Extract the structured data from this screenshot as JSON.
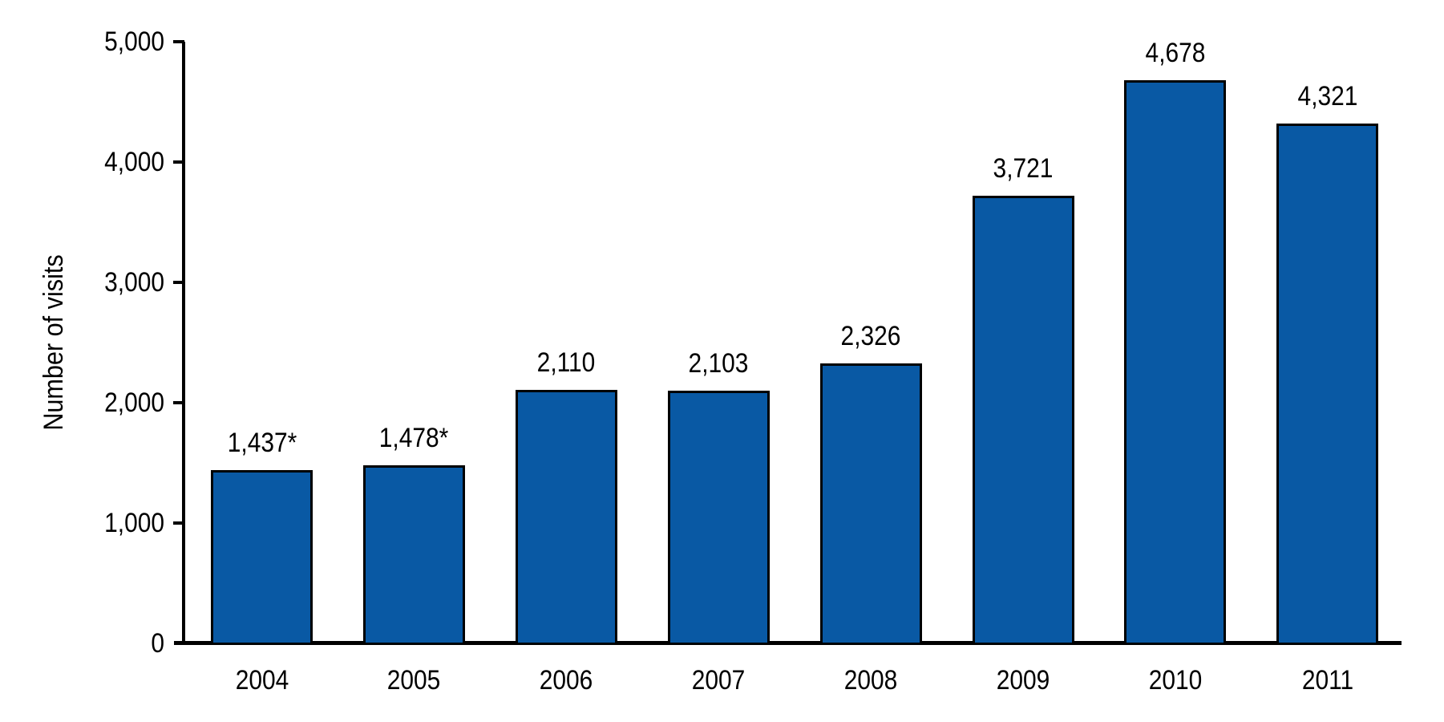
{
  "chart_data": {
    "type": "bar",
    "title": "",
    "ylabel": "Number of visits",
    "xlabel": "",
    "categories": [
      "2004",
      "2005",
      "2006",
      "2007",
      "2008",
      "2009",
      "2010",
      "2011"
    ],
    "values": [
      1437,
      1478,
      2110,
      2103,
      2326,
      3721,
      4678,
      4321
    ],
    "bar_labels": [
      "1,437*",
      "1,478*",
      "2,110",
      "2,103",
      "2,326",
      "3,721",
      "4,678",
      "4,321"
    ],
    "yticks": [
      0,
      1000,
      2000,
      3000,
      4000,
      5000
    ],
    "ytick_labels": [
      "0",
      "1,000",
      "2,000",
      "3,000",
      "4,000",
      "5,000"
    ],
    "ylim": [
      0,
      5000
    ],
    "grid": false,
    "legend": "none",
    "colors": {
      "bar_fill": "#0959A4",
      "bar_border": "#000000",
      "axis": "#000000",
      "text": "#000000",
      "background": "#FFFFFF"
    }
  }
}
